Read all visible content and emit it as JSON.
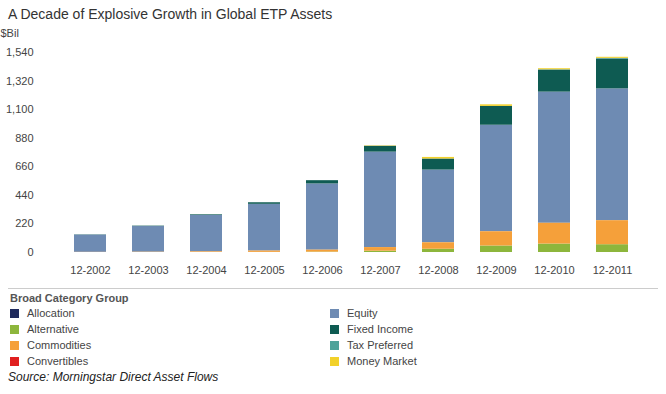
{
  "chart_data": {
    "type": "bar",
    "title": "A Decade of Explosive Growth in Global ETP Assets",
    "ylabel": "$Bil",
    "legend_title": "Broad Category Group",
    "source": "Source: Morningstar Direct Asset Flows",
    "stacked": true,
    "grid": false,
    "legend": "bottom",
    "categories": [
      "12-2002",
      "12-2003",
      "12-2004",
      "12-2005",
      "12-2006",
      "12-2007",
      "12-2008",
      "12-2009",
      "12-2010",
      "12-2011"
    ],
    "ylim": [
      0,
      1540
    ],
    "yticks": [
      0,
      220,
      440,
      660,
      880,
      {
        "value": 1100,
        "label": "1,100"
      },
      {
        "value": 1320,
        "label": "1,320"
      },
      {
        "value": 1540,
        "label": "1,540"
      }
    ],
    "series": [
      {
        "name": "Allocation",
        "color": "#1f2a5c",
        "values": [
          0,
          0,
          0,
          0,
          0,
          0,
          0,
          0,
          0,
          0
        ]
      },
      {
        "name": "Equity",
        "color": "#6e8bb3",
        "values": [
          133,
          198,
          280,
          360,
          510,
          735,
          560,
          820,
          1010,
          1015
        ]
      },
      {
        "name": "Alternative",
        "color": "#8db63c",
        "values": [
          0,
          0,
          0,
          1,
          3,
          10,
          25,
          50,
          65,
          60
        ]
      },
      {
        "name": "Fixed Income",
        "color": "#0e5b52",
        "values": [
          2,
          3,
          5,
          12,
          25,
          45,
          85,
          145,
          170,
          230
        ]
      },
      {
        "name": "Commodities",
        "color": "#f5a03a",
        "values": [
          1,
          2,
          5,
          10,
          15,
          28,
          50,
          110,
          160,
          185
        ]
      },
      {
        "name": "Tax Preferred",
        "color": "#4fa39a",
        "values": [
          0,
          0,
          0,
          0,
          0,
          0,
          0,
          0,
          2,
          5
        ]
      },
      {
        "name": "Convertibles",
        "color": "#e02020",
        "values": [
          0,
          0,
          0,
          0,
          0,
          0,
          0,
          0,
          0,
          0
        ]
      },
      {
        "name": "Money Market",
        "color": "#f2d12a",
        "values": [
          0,
          0,
          0,
          0,
          0,
          3,
          12,
          12,
          8,
          8
        ]
      }
    ]
  }
}
